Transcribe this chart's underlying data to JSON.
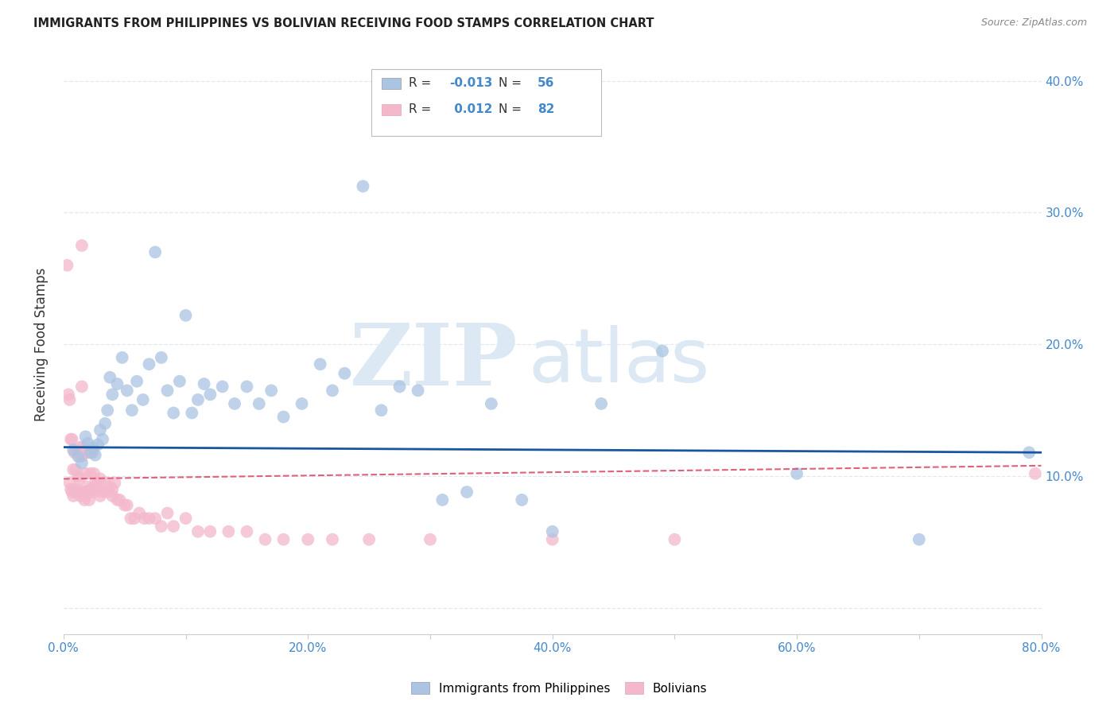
{
  "title": "IMMIGRANTS FROM PHILIPPINES VS BOLIVIAN RECEIVING FOOD STAMPS CORRELATION CHART",
  "source": "Source: ZipAtlas.com",
  "ylabel": "Receiving Food Stamps",
  "xlim": [
    0.0,
    0.8
  ],
  "ylim": [
    -0.02,
    0.42
  ],
  "yticks": [
    0.0,
    0.1,
    0.2,
    0.3,
    0.4
  ],
  "ytick_labels": [
    "",
    "10.0%",
    "20.0%",
    "30.0%",
    "40.0%"
  ],
  "xticks": [
    0.0,
    0.1,
    0.2,
    0.3,
    0.4,
    0.5,
    0.6,
    0.7,
    0.8
  ],
  "xtick_labels": [
    "0.0%",
    "",
    "20.0%",
    "",
    "40.0%",
    "",
    "60.0%",
    "",
    "80.0%"
  ],
  "blue_color": "#aac4e2",
  "blue_line_color": "#1a56a0",
  "pink_color": "#f4b8cc",
  "pink_line_color": "#e0607a",
  "axis_label_color": "#4488cc",
  "grid_color": "#e0e8f0",
  "background_color": "#ffffff",
  "watermark_color": "#dce8f4",
  "legend_blue_label": "Immigrants from Philippines",
  "legend_pink_label": "Bolivians",
  "blue_R": "-0.013",
  "blue_N": "56",
  "pink_R": "0.012",
  "pink_N": "82",
  "blue_line_y0": 0.122,
  "blue_line_y1": 0.118,
  "pink_line_y0": 0.098,
  "pink_line_y1": 0.108,
  "blue_scatter_x": [
    0.008,
    0.012,
    0.015,
    0.018,
    0.02,
    0.022,
    0.024,
    0.026,
    0.028,
    0.03,
    0.032,
    0.034,
    0.036,
    0.038,
    0.04,
    0.044,
    0.048,
    0.052,
    0.056,
    0.06,
    0.065,
    0.07,
    0.075,
    0.08,
    0.085,
    0.09,
    0.095,
    0.1,
    0.105,
    0.11,
    0.115,
    0.12,
    0.13,
    0.14,
    0.15,
    0.16,
    0.17,
    0.18,
    0.195,
    0.21,
    0.22,
    0.23,
    0.245,
    0.26,
    0.275,
    0.29,
    0.31,
    0.33,
    0.35,
    0.375,
    0.4,
    0.44,
    0.49,
    0.6,
    0.7,
    0.79
  ],
  "blue_scatter_y": [
    0.12,
    0.115,
    0.11,
    0.13,
    0.125,
    0.118,
    0.122,
    0.116,
    0.124,
    0.135,
    0.128,
    0.14,
    0.15,
    0.175,
    0.162,
    0.17,
    0.19,
    0.165,
    0.15,
    0.172,
    0.158,
    0.185,
    0.27,
    0.19,
    0.165,
    0.148,
    0.172,
    0.222,
    0.148,
    0.158,
    0.17,
    0.162,
    0.168,
    0.155,
    0.168,
    0.155,
    0.165,
    0.145,
    0.155,
    0.185,
    0.165,
    0.178,
    0.32,
    0.15,
    0.168,
    0.165,
    0.082,
    0.088,
    0.155,
    0.082,
    0.058,
    0.155,
    0.195,
    0.102,
    0.052,
    0.118
  ],
  "pink_scatter_x": [
    0.003,
    0.004,
    0.005,
    0.005,
    0.006,
    0.006,
    0.007,
    0.007,
    0.008,
    0.008,
    0.009,
    0.009,
    0.01,
    0.01,
    0.01,
    0.011,
    0.011,
    0.012,
    0.012,
    0.013,
    0.013,
    0.014,
    0.014,
    0.015,
    0.015,
    0.015,
    0.016,
    0.016,
    0.017,
    0.017,
    0.018,
    0.018,
    0.019,
    0.019,
    0.02,
    0.02,
    0.021,
    0.022,
    0.022,
    0.023,
    0.024,
    0.025,
    0.025,
    0.026,
    0.027,
    0.028,
    0.03,
    0.03,
    0.032,
    0.034,
    0.036,
    0.038,
    0.04,
    0.04,
    0.042,
    0.044,
    0.046,
    0.05,
    0.052,
    0.055,
    0.058,
    0.062,
    0.066,
    0.07,
    0.075,
    0.08,
    0.085,
    0.09,
    0.1,
    0.11,
    0.12,
    0.135,
    0.15,
    0.165,
    0.18,
    0.2,
    0.22,
    0.25,
    0.3,
    0.4,
    0.5,
    0.795
  ],
  "pink_scatter_y": [
    0.26,
    0.162,
    0.158,
    0.095,
    0.128,
    0.09,
    0.128,
    0.088,
    0.105,
    0.085,
    0.118,
    0.09,
    0.118,
    0.105,
    0.088,
    0.118,
    0.09,
    0.118,
    0.1,
    0.115,
    0.098,
    0.122,
    0.085,
    0.275,
    0.168,
    0.115,
    0.122,
    0.088,
    0.118,
    0.082,
    0.102,
    0.085,
    0.092,
    0.088,
    0.118,
    0.088,
    0.082,
    0.102,
    0.09,
    0.118,
    0.118,
    0.102,
    0.088,
    0.095,
    0.09,
    0.095,
    0.098,
    0.085,
    0.088,
    0.095,
    0.088,
    0.092,
    0.085,
    0.09,
    0.095,
    0.082,
    0.082,
    0.078,
    0.078,
    0.068,
    0.068,
    0.072,
    0.068,
    0.068,
    0.068,
    0.062,
    0.072,
    0.062,
    0.068,
    0.058,
    0.058,
    0.058,
    0.058,
    0.052,
    0.052,
    0.052,
    0.052,
    0.052,
    0.052,
    0.052,
    0.052,
    0.102
  ]
}
